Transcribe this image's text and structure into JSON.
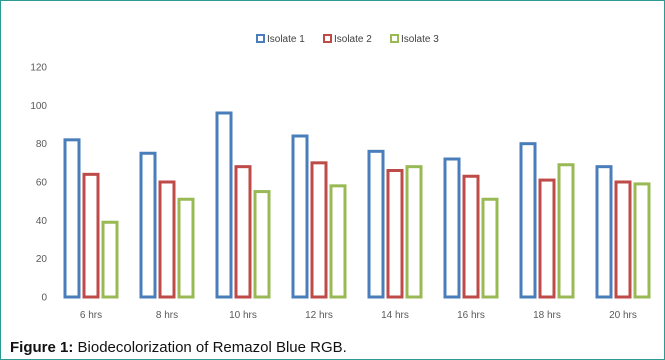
{
  "chart_data": {
    "type": "bar",
    "categories": [
      "6 hrs",
      "8 hrs",
      "10 hrs",
      "12 hrs",
      "14 hrs",
      "16 hrs",
      "18 hrs",
      "20 hrs"
    ],
    "series": [
      {
        "name": "Isolate 1",
        "color": "#4a7ebb",
        "values": [
          82,
          75,
          96,
          84,
          76,
          72,
          80,
          68
        ]
      },
      {
        "name": "Isolate 2",
        "color": "#be4b48",
        "values": [
          64,
          60,
          68,
          70,
          66,
          63,
          61,
          60
        ]
      },
      {
        "name": "Isolate 3",
        "color": "#98b954",
        "values": [
          39,
          51,
          55,
          58,
          68,
          51,
          69,
          59
        ]
      }
    ],
    "yticks": [
      "0",
      "20",
      "40",
      "60",
      "80",
      "100",
      "120"
    ],
    "ylim": [
      0,
      120
    ],
    "grid": false,
    "legend_position": "top-center",
    "bar_style": "outlined"
  },
  "caption": {
    "label": "Figure 1:",
    "text": "Biodecolorization of Remazol Blue RGB."
  }
}
